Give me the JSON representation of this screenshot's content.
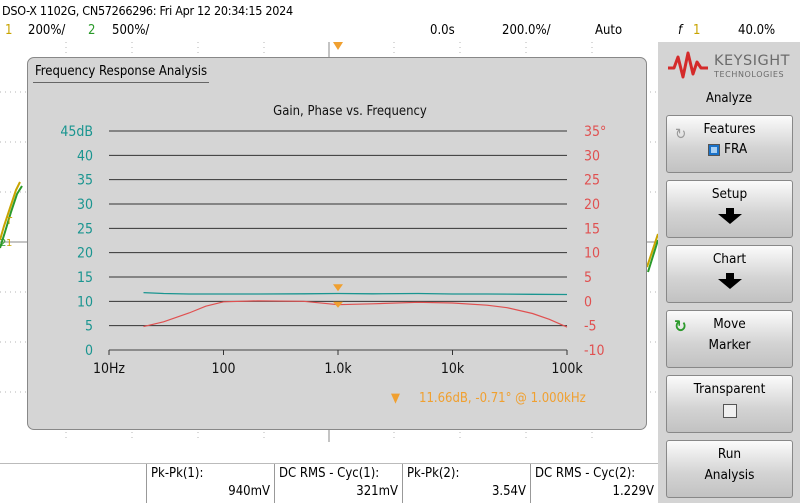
{
  "header": {
    "title": "DSO-X 1102G, CN57266296: Fri Apr 12 20:34:15 2024",
    "ch1_num": "1",
    "ch1_scale": "200%/",
    "ch2_num": "2",
    "ch2_scale": "500%/",
    "time_pos": "0.0s",
    "time_scale": "200.0%/",
    "trigger_mode": "Auto",
    "trigger_slope": "f",
    "trigger_ch": "1",
    "trigger_level": "40.0%"
  },
  "fra": {
    "panel_title": "Frequency Response Analysis",
    "readout": "11.66dB, -0.71° @ 1.000kHz",
    "marker_symbol": "▼"
  },
  "chart_data": {
    "type": "line",
    "title": "Gain, Phase vs. Frequency",
    "x_scale": "log",
    "xlim": [
      10,
      100000
    ],
    "x_ticks": [
      "10Hz",
      "100",
      "1.0k",
      "10k",
      "100k"
    ],
    "y_left_ticks": [
      "45dB",
      "40",
      "35",
      "30",
      "25",
      "20",
      "15",
      "10",
      "5",
      "0"
    ],
    "y_left_range": [
      0,
      45
    ],
    "y_right_ticks": [
      "35°",
      "30",
      "25",
      "20",
      "15",
      "10",
      "5",
      "0",
      "-5",
      "-10"
    ],
    "y_right_range": [
      -10,
      35
    ],
    "grid": true,
    "colors": {
      "gain": "#1a9590",
      "phase": "#e05050",
      "marker": "#f0a030"
    },
    "series": [
      {
        "axis": "left",
        "x": [
          20,
          30,
          50,
          100,
          200,
          500,
          1000,
          2000,
          5000,
          10000,
          20000,
          50000,
          100000
        ],
        "y": [
          11.8,
          11.6,
          11.5,
          11.5,
          11.5,
          11.55,
          11.6,
          11.55,
          11.6,
          11.5,
          11.5,
          11.45,
          11.4
        ]
      },
      {
        "axis": "right",
        "x": [
          20,
          30,
          50,
          70,
          100,
          200,
          500,
          1000,
          2000,
          5000,
          10000,
          20000,
          30000,
          50000,
          70000,
          100000
        ],
        "y": [
          -5.2,
          -4.2,
          -2.4,
          -1.0,
          -0.1,
          0.1,
          0.0,
          -0.7,
          -0.5,
          -0.2,
          -0.35,
          -0.8,
          -1.3,
          -2.5,
          -3.7,
          -5.3
        ]
      }
    ],
    "marker": {
      "x": 1000,
      "gain": 11.66,
      "phase": -0.71
    }
  },
  "menu": {
    "brand": "KEYSIGHT",
    "brand_sub": "TECHNOLOGIES",
    "title": "Analyze",
    "features_label": "Features",
    "features_value": "FRA",
    "setup_label": "Setup",
    "chart_label": "Chart",
    "move_label": "Move",
    "move_label2": "Marker",
    "transparent_label": "Transparent",
    "run_label": "Run",
    "run_label2": "Analysis"
  },
  "measurements": [
    {
      "label": "Pk-Pk(1):",
      "value": "940mV"
    },
    {
      "label": "DC RMS - Cyc(1):",
      "value": "321mV"
    },
    {
      "label": "Pk-Pk(2):",
      "value": "3.54V"
    },
    {
      "label": "DC RMS - Cyc(2):",
      "value": "1.229V"
    }
  ]
}
